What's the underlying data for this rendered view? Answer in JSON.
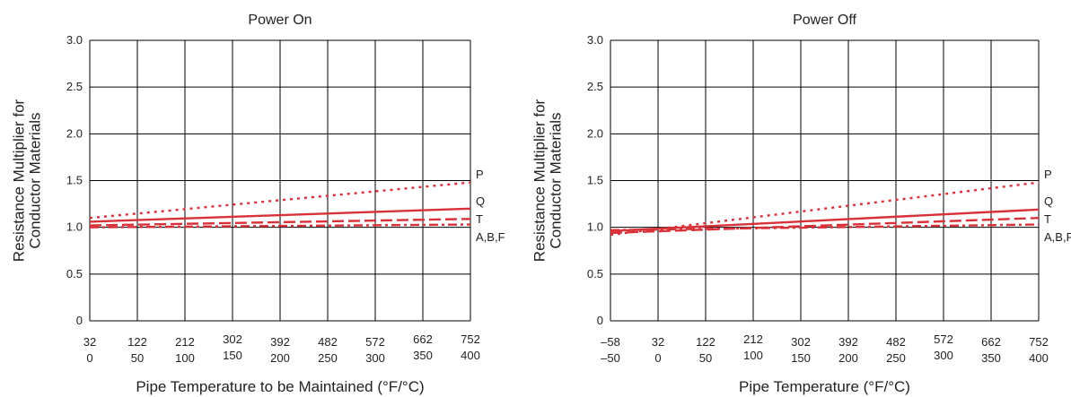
{
  "chart_data": [
    {
      "type": "line",
      "title": "Power On",
      "xlabel": "Pipe Temperature to be Maintained (°F/°C)",
      "ylabel": [
        "Resistance Multiplier for",
        "Conductor Materials"
      ],
      "ylim": [
        0,
        3.0
      ],
      "yticks": [
        "0",
        "0.5",
        "1.0",
        "1.5",
        "2.0",
        "2.5",
        "3.0"
      ],
      "xlim": [
        32,
        752
      ],
      "x_ticks_f": [
        "32",
        "122",
        "212",
        "302",
        "392",
        "482",
        "572",
        "662",
        "752"
      ],
      "x_ticks_c": [
        "0",
        "50",
        "100",
        "150",
        "200",
        "250",
        "300",
        "350",
        "400"
      ],
      "grid": true,
      "series": [
        {
          "name": "P",
          "style": "dotted",
          "x": [
            32,
            752
          ],
          "y": [
            1.1,
            1.48
          ]
        },
        {
          "name": "Q",
          "style": "solid",
          "x": [
            32,
            752
          ],
          "y": [
            1.06,
            1.2
          ]
        },
        {
          "name": "T",
          "style": "dash",
          "x": [
            32,
            752
          ],
          "y": [
            1.02,
            1.09
          ]
        },
        {
          "name": "A,B,F",
          "style": "dashdot",
          "x": [
            32,
            752
          ],
          "y": [
            1.0,
            1.03
          ]
        }
      ]
    },
    {
      "type": "line",
      "title": "Power Off",
      "xlabel": "Pipe Temperature (°F/°C)",
      "ylabel": [
        "Resistance Multiplier for",
        "Conductor Materials"
      ],
      "ylim": [
        0,
        3.0
      ],
      "yticks": [
        "0",
        "0.5",
        "1.0",
        "1.5",
        "2.0",
        "2.5",
        "3.0"
      ],
      "xlim": [
        -58,
        752
      ],
      "x_ticks_f": [
        "–58",
        "32",
        "122",
        "212",
        "302",
        "392",
        "482",
        "572",
        "662",
        "752"
      ],
      "x_ticks_c": [
        "–50",
        "0",
        "50",
        "100",
        "150",
        "200",
        "250",
        "300",
        "350",
        "400"
      ],
      "grid": true,
      "series": [
        {
          "name": "P",
          "style": "dotted",
          "x": [
            -58,
            752
          ],
          "y": [
            0.92,
            1.48
          ]
        },
        {
          "name": "Q",
          "style": "solid",
          "x": [
            -58,
            752
          ],
          "y": [
            0.96,
            1.19
          ]
        },
        {
          "name": "T",
          "style": "dash",
          "x": [
            -58,
            752
          ],
          "y": [
            0.94,
            1.1
          ]
        },
        {
          "name": "A,B,F",
          "style": "dashdot",
          "x": [
            -58,
            752
          ],
          "y": [
            0.97,
            1.03
          ]
        }
      ]
    }
  ],
  "colors": {
    "series": "#d9313a",
    "grid": "#000000",
    "text": "#222222"
  }
}
